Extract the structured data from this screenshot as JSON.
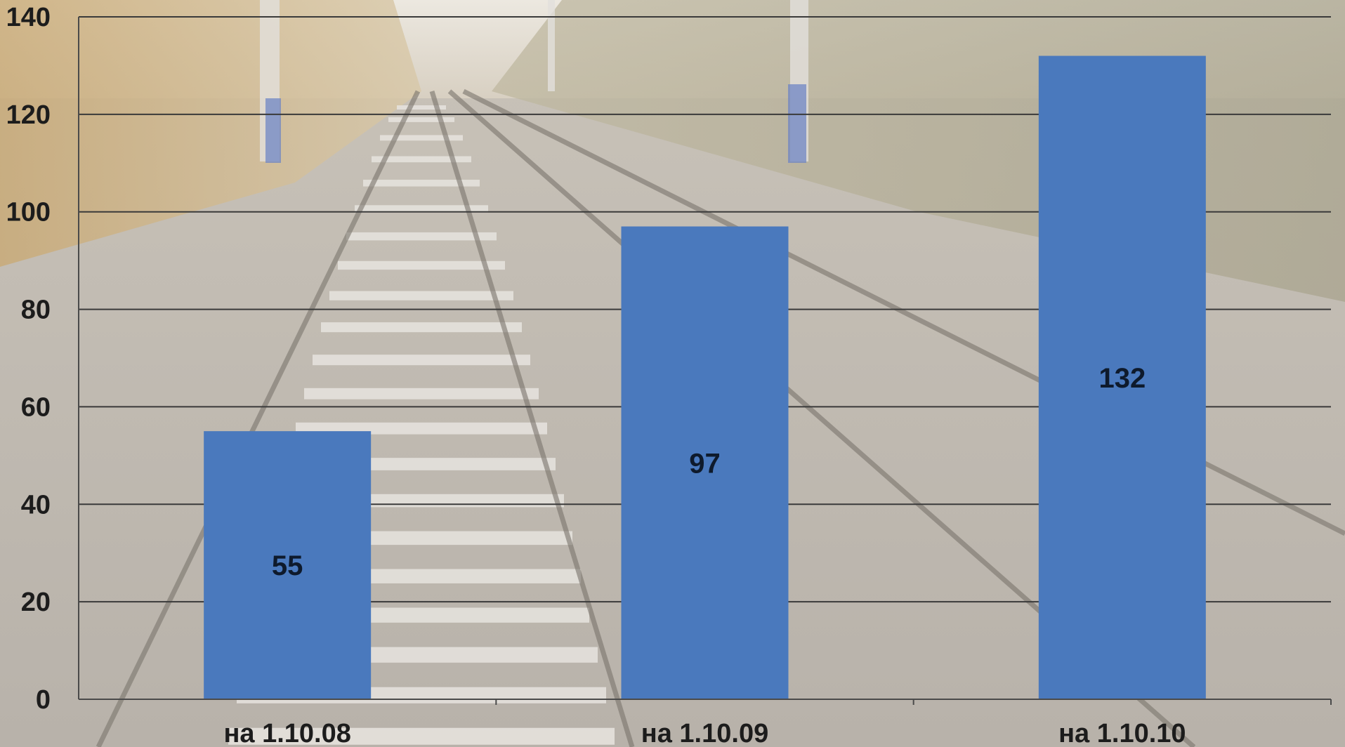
{
  "chart_data": {
    "type": "bar",
    "title": "",
    "xlabel": "",
    "ylabel": "",
    "categories": [
      "на 1.10.08",
      "на 1.10.09",
      "на 1.10.10"
    ],
    "values": [
      55,
      97,
      132
    ],
    "data_labels": [
      "55",
      "97",
      "132"
    ],
    "ylim": [
      0,
      140
    ],
    "y_ticks": [
      "0",
      "20",
      "40",
      "60",
      "80",
      "100",
      "120",
      "140"
    ],
    "grid": true,
    "legend": "none",
    "background": "photo of railway tracks",
    "bar_color": "#4a79bd",
    "gridline_color": "#3a3a3a"
  }
}
